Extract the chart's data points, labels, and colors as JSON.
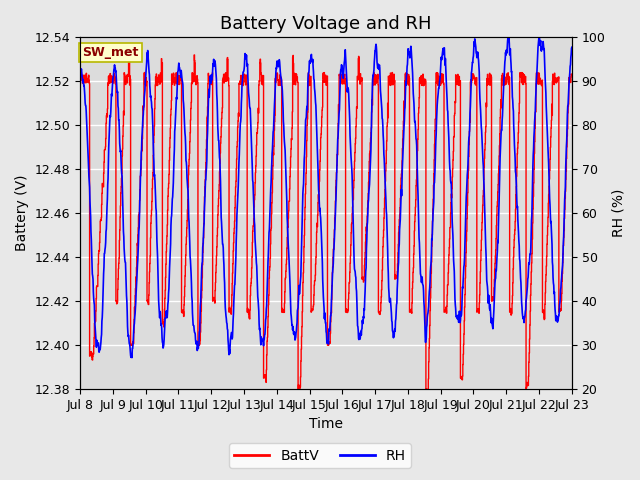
{
  "title": "Battery Voltage and RH",
  "xlabel": "Time",
  "ylabel_left": "Battery (V)",
  "ylabel_right": "RH (%)",
  "ylim_left": [
    12.38,
    12.54
  ],
  "ylim_right": [
    20,
    100
  ],
  "yticks_left": [
    12.38,
    12.4,
    12.42,
    12.44,
    12.46,
    12.48,
    12.5,
    12.52,
    12.54
  ],
  "yticks_right": [
    20,
    30,
    40,
    50,
    60,
    70,
    80,
    90,
    100
  ],
  "xtick_labels": [
    "Jul 8",
    "Jul 9",
    "Jul 10",
    "Jul 11",
    "Jul 12",
    "Jul 13",
    "Jul 14",
    "Jul 15",
    "Jul 16",
    "Jul 17",
    "Jul 18",
    "Jul 19",
    "Jul 20",
    "Jul 21",
    "Jul 22",
    "Jul 23"
  ],
  "legend_labels": [
    "BattV",
    "RH"
  ],
  "batt_color": "red",
  "rh_color": "blue",
  "plot_bg_color": "#dcdcdc",
  "fig_bg_color": "#e8e8e8",
  "grid_color": "white",
  "title_fontsize": 13,
  "label_fontsize": 10,
  "tick_fontsize": 9,
  "annotation_text": "SW_met",
  "annotation_fg": "#8b0000",
  "annotation_bg": "#ffffcc",
  "annotation_border": "#b8b800"
}
